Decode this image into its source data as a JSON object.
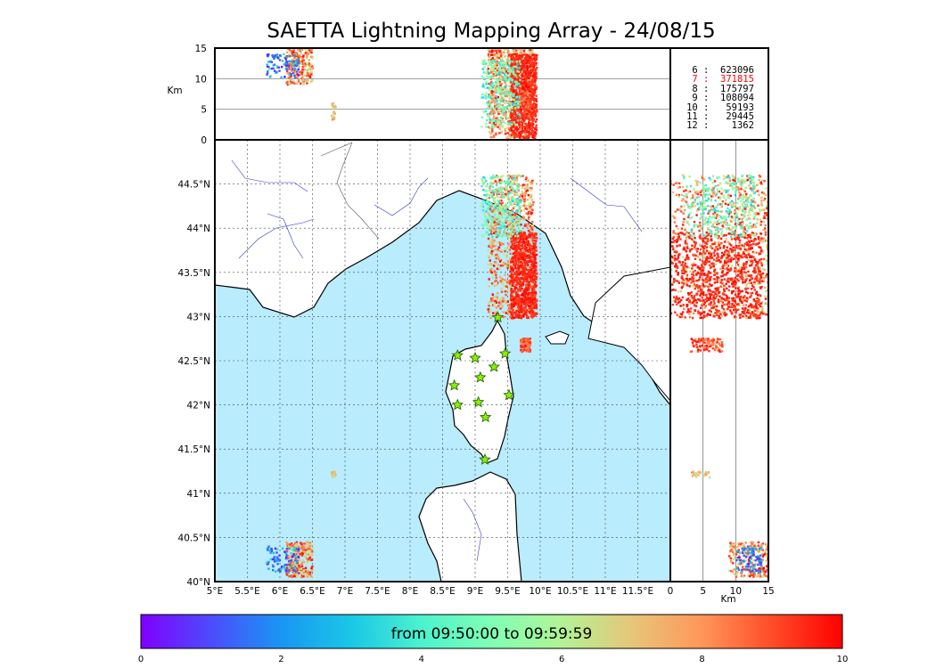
{
  "title": "SAETTA Lightning Mapping Array - 24/08/15",
  "colorbar": {
    "label": "from 09:50:00 to 09:59:59",
    "ticks": [
      "0",
      "2",
      "4",
      "6",
      "8",
      "10"
    ]
  },
  "stats": [
    {
      "id": "6",
      "count": "623096",
      "color": "#000000"
    },
    {
      "id": "7",
      "count": "371815",
      "color": "#ff0000"
    },
    {
      "id": "8",
      "count": "175797",
      "color": "#000000"
    },
    {
      "id": "9",
      "count": "108094",
      "color": "#000000"
    },
    {
      "id": "10",
      "count": "59193",
      "color": "#000000"
    },
    {
      "id": "11",
      "count": "29445",
      "color": "#000000"
    },
    {
      "id": "12",
      "count": "1362",
      "color": "#000000"
    }
  ],
  "chart_data": {
    "type": "scatter",
    "colormap": "rainbow",
    "color_range": [
      0,
      10
    ],
    "map": {
      "lon_range": [
        5,
        12
      ],
      "lat_range": [
        40,
        45
      ],
      "lon_ticks": [
        "5°E",
        "5.5°E",
        "6°E",
        "6.5°E",
        "7°E",
        "7.5°E",
        "8°E",
        "8.5°E",
        "9°E",
        "9.5°E",
        "10°E",
        "10.5°E",
        "11°E",
        "11.5°E"
      ],
      "lat_ticks": [
        "40°N",
        "40.5°N",
        "41°N",
        "41.5°N",
        "42°N",
        "42.5°N",
        "43°N",
        "43.5°N",
        "44°N",
        "44.5°N"
      ]
    },
    "altitude_lon_panel": {
      "ylabel": "Km",
      "ylim": [
        0,
        15
      ],
      "yticks": [
        "0",
        "5",
        "10",
        "15"
      ]
    },
    "altitude_lat_panel": {
      "xlabel": "Km",
      "xlim": [
        0,
        15
      ],
      "xticks": [
        "0",
        "5",
        "10",
        "15"
      ]
    },
    "stations": [
      {
        "lon": 9.35,
        "lat": 42.99
      },
      {
        "lon": 8.73,
        "lat": 42.56
      },
      {
        "lon": 9.0,
        "lat": 42.53
      },
      {
        "lon": 9.46,
        "lat": 42.58
      },
      {
        "lon": 9.29,
        "lat": 42.43
      },
      {
        "lon": 9.08,
        "lat": 42.31
      },
      {
        "lon": 8.68,
        "lat": 42.22
      },
      {
        "lon": 9.52,
        "lat": 42.11
      },
      {
        "lon": 9.05,
        "lat": 42.03
      },
      {
        "lon": 8.73,
        "lat": 42.0
      },
      {
        "lon": 9.16,
        "lat": 41.86
      },
      {
        "lon": 9.15,
        "lat": 41.38
      }
    ],
    "clusters": [
      {
        "name": "main",
        "lon": [
          9.2,
          9.9
        ],
        "lat": [
          42.98,
          44.6
        ],
        "alt": [
          0,
          15
        ],
        "color": [
          6,
          10
        ],
        "weight": 70
      },
      {
        "name": "main-late",
        "lon": [
          9.55,
          9.95
        ],
        "lat": [
          42.98,
          43.95
        ],
        "alt": [
          0,
          14
        ],
        "color": [
          9,
          10
        ],
        "weight": 70
      },
      {
        "name": "north-early",
        "lon": [
          9.1,
          9.7
        ],
        "lat": [
          43.9,
          44.6
        ],
        "alt": [
          2,
          13
        ],
        "color": [
          3,
          6.5
        ],
        "weight": 25
      },
      {
        "name": "cap-corse",
        "lon": [
          9.7,
          9.85
        ],
        "lat": [
          42.6,
          42.75
        ],
        "alt": [
          3,
          8
        ],
        "color": [
          8,
          10
        ],
        "weight": 8
      },
      {
        "name": "nw",
        "lon": [
          6.1,
          6.5
        ],
        "lat": [
          40.05,
          40.45
        ],
        "alt": [
          9,
          15
        ],
        "color": [
          6,
          10
        ],
        "weight": 20
      },
      {
        "name": "nw-early",
        "lon": [
          5.8,
          6.3
        ],
        "lat": [
          40.1,
          40.4
        ],
        "alt": [
          10,
          14
        ],
        "color": [
          0,
          4
        ],
        "weight": 8
      },
      {
        "name": "isolated",
        "lon": [
          6.8,
          6.86
        ],
        "lat": [
          41.17,
          41.25
        ],
        "alt": [
          3,
          6
        ],
        "color": [
          6,
          8.5
        ],
        "weight": 2
      }
    ]
  }
}
